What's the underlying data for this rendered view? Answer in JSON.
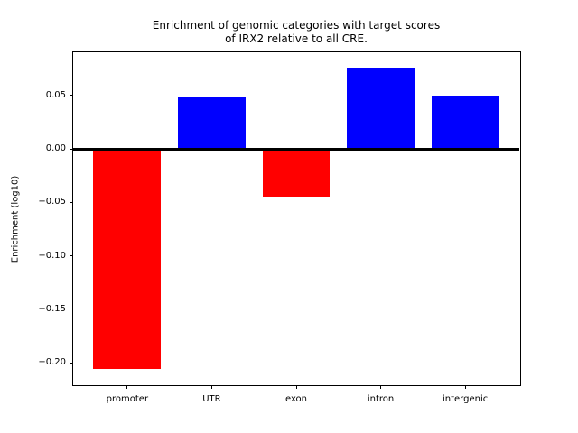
{
  "figure": {
    "title_line1": "Enrichment of genomic categories with target scores",
    "title_line2": "of IRX2 relative to all CRE.",
    "background": "#ffffff"
  },
  "chart_data": {
    "type": "bar",
    "title": "Enrichment of genomic categories with target scores of IRX2 relative to all CRE.",
    "xlabel": "",
    "ylabel": "Enrichment (log10)",
    "categories": [
      "promoter",
      "UTR",
      "exon",
      "intron",
      "intergenic"
    ],
    "values": [
      -0.206,
      0.049,
      -0.045,
      0.076,
      0.05
    ],
    "bar_colors": [
      "#ff0000",
      "#0000ff",
      "#ff0000",
      "#0000ff",
      "#0000ff"
    ],
    "positive_color": "#0000ff",
    "negative_color": "#ff0000",
    "ylim": [
      -0.221,
      0.09
    ],
    "yticks": [
      0.05,
      0.0,
      -0.05,
      -0.1,
      -0.15,
      -0.2
    ],
    "ytick_labels": [
      "0.05",
      "0.00",
      "−0.05",
      "−0.10",
      "−0.15",
      "−0.20"
    ],
    "grid": false,
    "legend": "none",
    "zero_line": true,
    "axis_color": "#000000",
    "bar_width_fraction": 0.8
  }
}
